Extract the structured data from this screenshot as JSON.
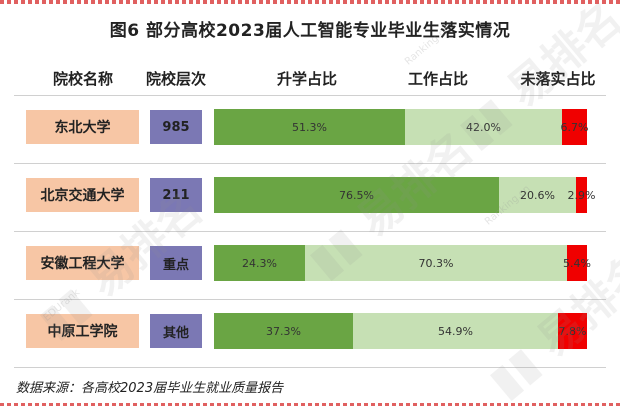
{
  "title": "图6  部分高校2023届人工智能专业毕业生落实情况",
  "headers": {
    "school": "院校名称",
    "level": "院校层次",
    "s0": "升学占比",
    "s1": "工作占比",
    "s2": "未落实占比"
  },
  "source": "数据来源：各高校2023届毕业生就业质量报告",
  "watermark": {
    "brand": "易排名",
    "site": "Ranking.cn",
    "alt": "EDUrank"
  },
  "colors": {
    "s0": "#6aa544",
    "s1": "#c6e0b4",
    "s2": "#f00000",
    "school_bg": "#f7c6a5",
    "level_bg": "#7b78b4"
  },
  "rows": [
    {
      "school": "东北大学",
      "level": "985"
    },
    {
      "school": "北京交通大学",
      "level": "211"
    },
    {
      "school": "安徽工程大学",
      "level": "重点"
    },
    {
      "school": "中原工学院",
      "level": "其他"
    }
  ],
  "chart_data": {
    "type": "bar",
    "orientation": "horizontal",
    "stacked": true,
    "normalized": "100%",
    "title": "图6  部分高校2023届人工智能专业毕业生落实情况",
    "categories": [
      "东北大学",
      "北京交通大学",
      "安徽工程大学",
      "中原工学院"
    ],
    "series": [
      {
        "name": "升学占比",
        "values": [
          51.3,
          76.5,
          24.3,
          37.3
        ],
        "labels": [
          "51.3%",
          "76.5%",
          "24.3%",
          "37.3%"
        ]
      },
      {
        "name": "工作占比",
        "values": [
          42.0,
          20.6,
          70.3,
          54.9
        ],
        "labels": [
          "42.0%",
          "20.6%",
          "70.3%",
          "54.9%"
        ]
      },
      {
        "name": "未落实占比",
        "values": [
          6.7,
          2.9,
          5.4,
          7.8
        ],
        "labels": [
          "6.7%",
          "2.9%",
          "5.4%",
          "7.8%"
        ]
      }
    ],
    "xlim": [
      0,
      100
    ],
    "grid": false,
    "legend": "none"
  }
}
